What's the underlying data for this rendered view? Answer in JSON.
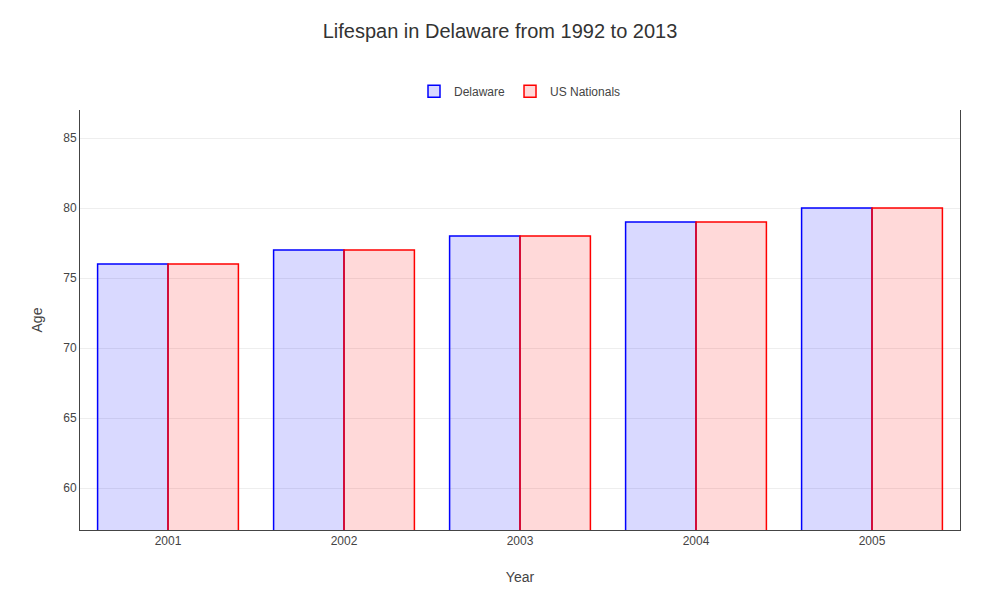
{
  "chart_data": {
    "type": "bar",
    "title": "Lifespan in Delaware from 1992 to 2013",
    "xlabel": "Year",
    "ylabel": "Age",
    "categories": [
      "2001",
      "2002",
      "2003",
      "2004",
      "2005"
    ],
    "series": [
      {
        "name": "Delaware",
        "color": "#0000ff",
        "values": [
          76,
          77,
          78,
          79,
          80
        ]
      },
      {
        "name": "US Nationals",
        "color": "#ff0000",
        "values": [
          76,
          77,
          78,
          79,
          80
        ]
      }
    ],
    "ylim": [
      57,
      87
    ],
    "yticks": [
      60,
      65,
      70,
      75,
      80,
      85
    ],
    "grid": true,
    "legend": "top"
  }
}
